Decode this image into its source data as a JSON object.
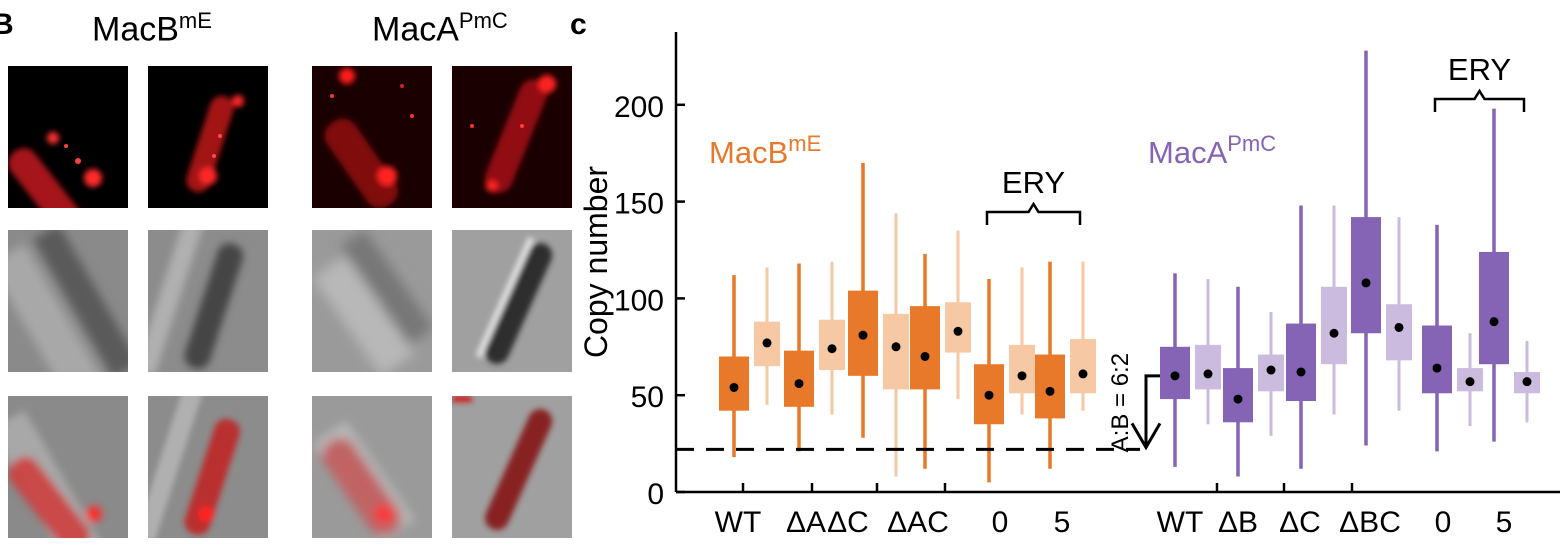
{
  "panel_b": {
    "letter": "B",
    "titles": [
      {
        "base": "MacB",
        "sup": "mE"
      },
      {
        "base": "MacA",
        "sup": "PmC"
      }
    ],
    "rows": [
      "fluorescence",
      "brightfield",
      "overlay"
    ]
  },
  "chart_data": {
    "type": "box",
    "panel_letter": "c",
    "ylabel": "Copy number",
    "ylim": [
      0,
      235
    ],
    "yticks": [
      0,
      50,
      100,
      150,
      200
    ],
    "groups": [
      {
        "name": "MacB",
        "name_sup": "mE",
        "color": "#e8782a",
        "light_color": "#f6c8a3",
        "categories": [
          {
            "label": "WT",
            "dark": {
              "whisker": [
                18,
                112
              ],
              "box": [
                42,
                70
              ],
              "median": 54
            },
            "light": {
              "whisker": [
                45,
                116
              ],
              "box": [
                65,
                88
              ],
              "median": 77
            }
          },
          {
            "label": "ΔA",
            "dark": {
              "whisker": [
                21,
                118
              ],
              "box": [
                44,
                73
              ],
              "median": 56
            },
            "light": {
              "whisker": [
                40,
                119
              ],
              "box": [
                63,
                89
              ],
              "median": 74
            }
          },
          {
            "label": "ΔC",
            "dark": {
              "whisker": [
                28,
                170
              ],
              "box": [
                60,
                104
              ],
              "median": 81
            },
            "light": {
              "whisker": [
                8,
                144
              ],
              "box": [
                53,
                92
              ],
              "median": 75
            }
          },
          {
            "label": "ΔAC",
            "dark": {
              "whisker": [
                12,
                123
              ],
              "box": [
                53,
                96
              ],
              "median": 70
            },
            "light": {
              "whisker": [
                48,
                135
              ],
              "box": [
                72,
                98
              ],
              "median": 83
            }
          },
          {
            "label": "0",
            "dark": {
              "whisker": [
                5,
                110
              ],
              "box": [
                35,
                66
              ],
              "median": 50
            },
            "light": {
              "whisker": [
                40,
                116
              ],
              "box": [
                51,
                76
              ],
              "median": 60
            }
          },
          {
            "label": "5",
            "dark": {
              "whisker": [
                12,
                119
              ],
              "box": [
                38,
                71
              ],
              "median": 52
            },
            "light": {
              "whisker": [
                42,
                119
              ],
              "box": [
                51,
                79
              ],
              "median": 61
            }
          }
        ],
        "annotation": {
          "text": "ERY",
          "from": 4,
          "to": 5
        }
      },
      {
        "name": "MacA",
        "name_sup": "PmC",
        "color": "#8563b5",
        "light_color": "#cbbcdf",
        "categories": [
          {
            "label": "WT",
            "dark": {
              "whisker": [
                13,
                113
              ],
              "box": [
                48,
                75
              ],
              "median": 60
            },
            "light": {
              "whisker": [
                35,
                110
              ],
              "box": [
                53,
                76
              ],
              "median": 61
            }
          },
          {
            "label": "ΔB",
            "dark": {
              "whisker": [
                8,
                106
              ],
              "box": [
                36,
                64
              ],
              "median": 48
            },
            "light": {
              "whisker": [
                29,
                93
              ],
              "box": [
                52,
                71
              ],
              "median": 63
            }
          },
          {
            "label": "ΔC",
            "dark": {
              "whisker": [
                12,
                148
              ],
              "box": [
                47,
                87
              ],
              "median": 62
            },
            "light": {
              "whisker": [
                40,
                148
              ],
              "box": [
                66,
                106
              ],
              "median": 82
            }
          },
          {
            "label": "ΔBC",
            "dark": {
              "whisker": [
                24,
                228
              ],
              "box": [
                82,
                142
              ],
              "median": 108
            },
            "light": {
              "whisker": [
                42,
                142
              ],
              "box": [
                68,
                97
              ],
              "median": 85
            }
          },
          {
            "label": "0",
            "dark": {
              "whisker": [
                21,
                138
              ],
              "box": [
                51,
                86
              ],
              "median": 64
            },
            "light": {
              "whisker": [
                34,
                82
              ],
              "box": [
                52,
                64
              ],
              "median": 57
            }
          },
          {
            "label": "5",
            "dark": {
              "whisker": [
                26,
                198
              ],
              "box": [
                66,
                124
              ],
              "median": 88
            },
            "light": {
              "whisker": [
                36,
                78
              ],
              "box": [
                51,
                62
              ],
              "median": 57
            }
          }
        ],
        "annotation": {
          "text": "ERY",
          "from": 4,
          "to": 5
        }
      }
    ],
    "reference_line": {
      "y": 22,
      "style": "dashed"
    },
    "ratio_annotation": {
      "text": "A:B = 6:2"
    }
  }
}
